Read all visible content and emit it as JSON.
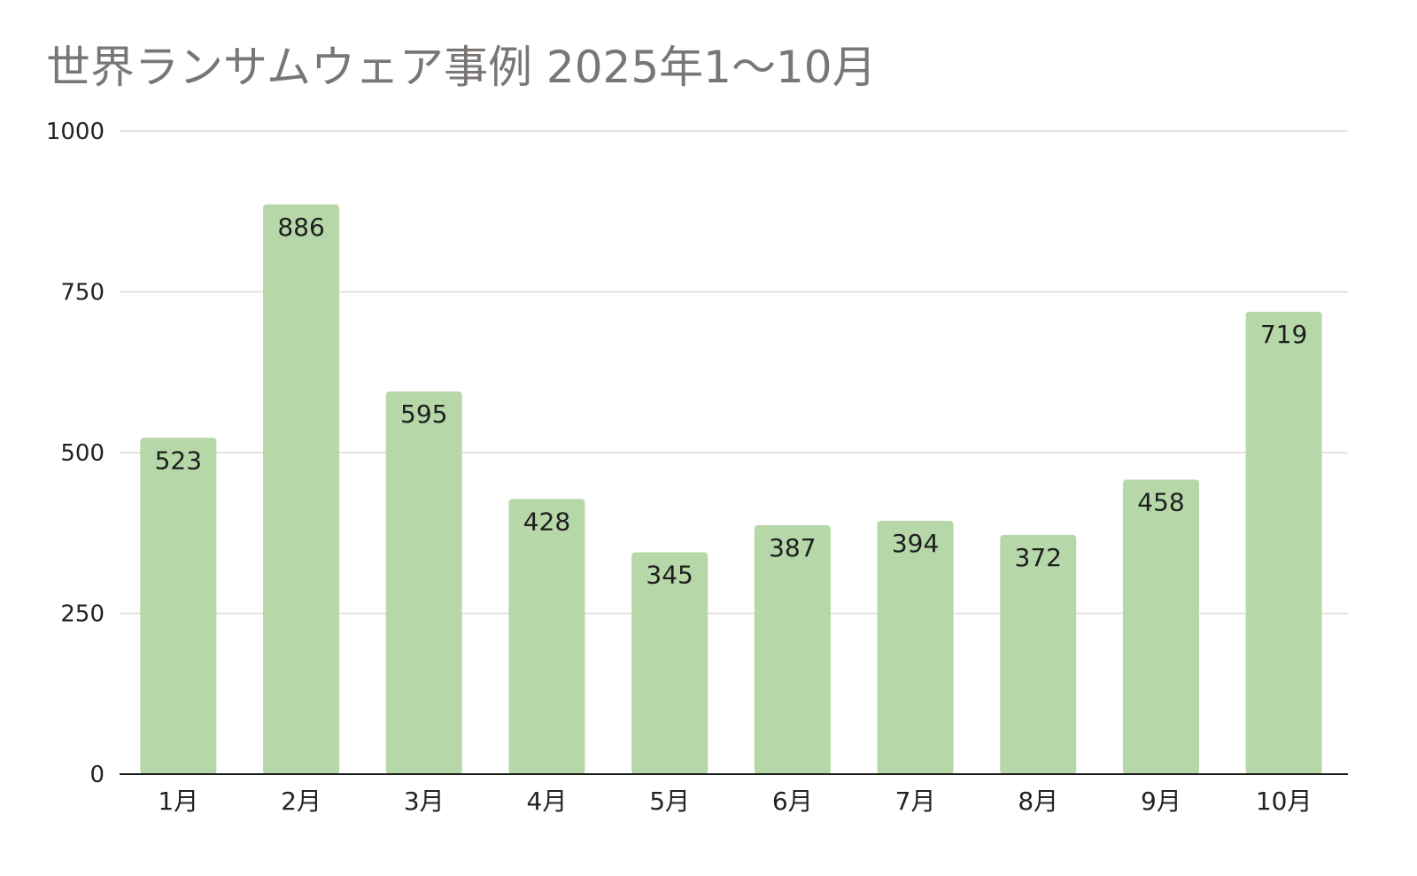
{
  "chart_data": {
    "type": "bar",
    "title": "世界ランサムウェア事例 2025年1〜10月",
    "categories": [
      "1月",
      "2月",
      "3月",
      "4月",
      "5月",
      "6月",
      "7月",
      "8月",
      "9月",
      "10月"
    ],
    "values": [
      523,
      886,
      595,
      428,
      345,
      387,
      394,
      372,
      458,
      719
    ],
    "yticks": [
      0,
      250,
      500,
      750,
      1000
    ],
    "ylim": [
      0,
      1000
    ],
    "grid": true,
    "legend": "none",
    "bar_color": "#b6d7a8"
  }
}
